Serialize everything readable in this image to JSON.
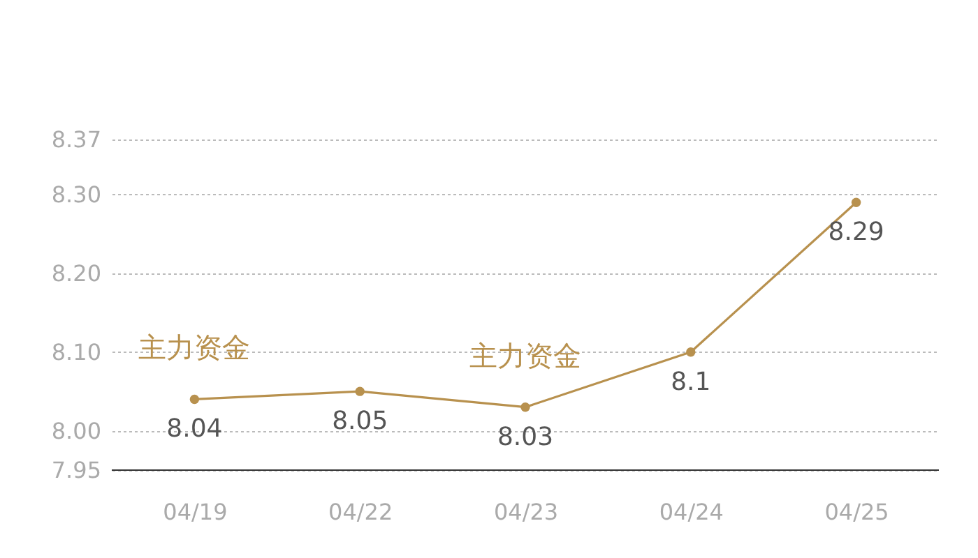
{
  "chart_data": {
    "type": "line",
    "categories": [
      "04/19",
      "04/22",
      "04/23",
      "04/24",
      "04/25"
    ],
    "series": [
      {
        "color": "#b8914e",
        "values": [
          8.04,
          8.05,
          8.03,
          8.1,
          8.29
        ]
      }
    ],
    "ylim": [
      7.95,
      8.37
    ],
    "yticks": [
      7.95,
      {
        "value": 8,
        "label": "8.00"
      },
      {
        "value": 8.1,
        "label": "8.10"
      },
      {
        "value": 8.2,
        "label": "8.20"
      },
      {
        "value": 8.3,
        "label": "8.30"
      },
      8.37
    ],
    "grid": "y",
    "marker": "circle",
    "data_labels": true,
    "annotations": [
      "主力资金",
      "主力资金"
    ]
  }
}
